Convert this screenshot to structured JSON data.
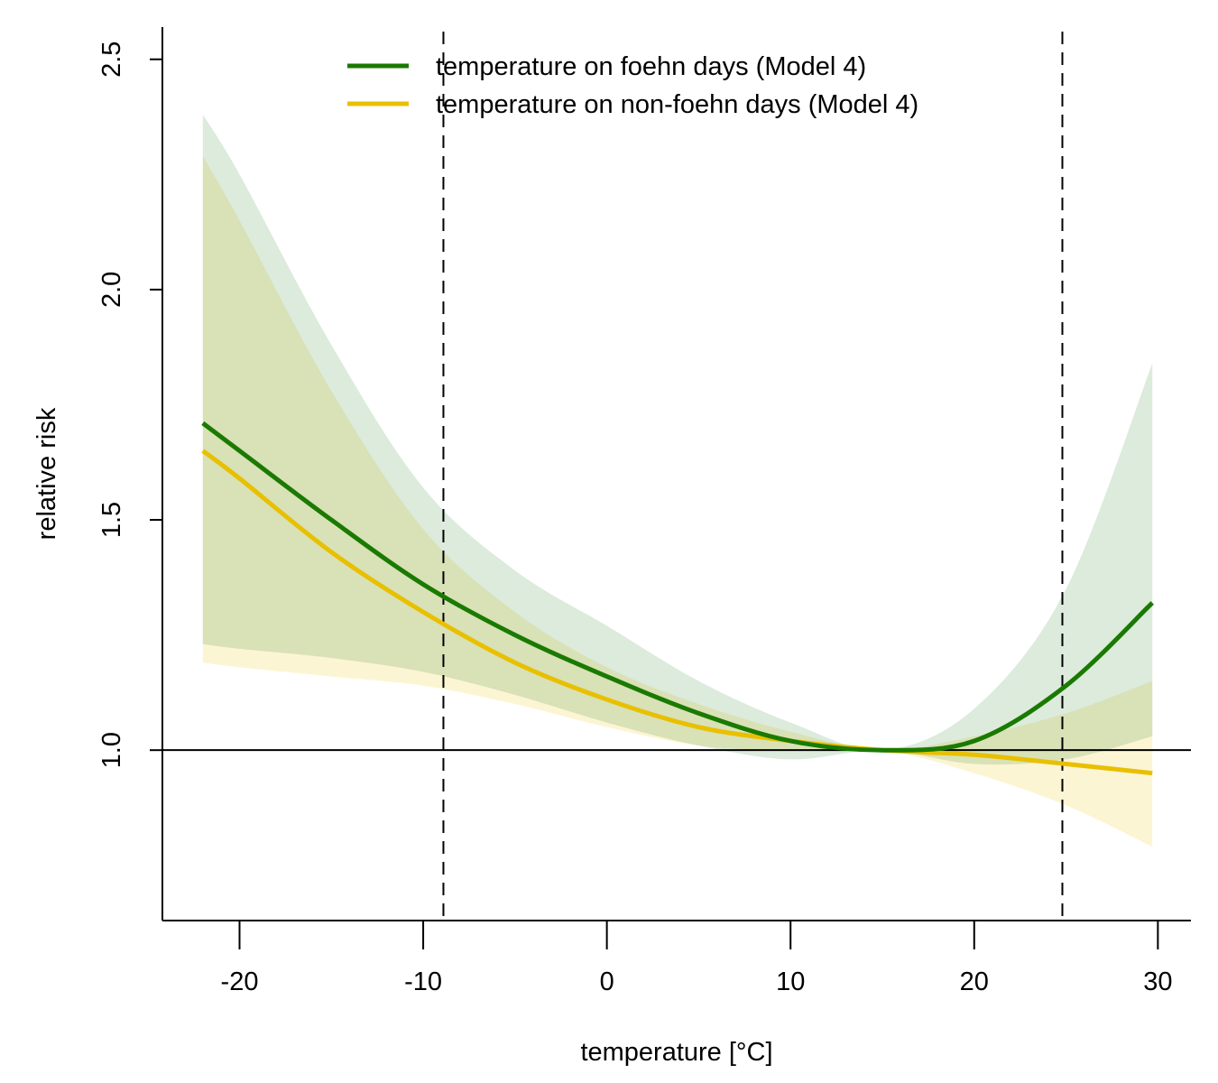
{
  "chart_data": {
    "type": "line",
    "title": "",
    "xlabel": "temperature [°C]",
    "ylabel": "relative risk",
    "xlim": [
      -24.2,
      31.8
    ],
    "ylim": [
      0.63,
      2.57
    ],
    "xticks": [
      -20,
      -10,
      0,
      10,
      20,
      30
    ],
    "xtick_labels": [
      "-20",
      "-10",
      "0",
      "10",
      "20",
      "30"
    ],
    "yticks": [
      1.0,
      1.5,
      2.0,
      2.5
    ],
    "ytick_labels": [
      "1.0",
      "1.5",
      "2.0",
      "2.5"
    ],
    "grid": false,
    "legend_position": "top-center",
    "reference_line_y": 1.0,
    "vertical_dashed_lines_x": [
      -8.9,
      24.8
    ],
    "x": [
      -22,
      -20,
      -15,
      -10,
      -5,
      0,
      5,
      10,
      15,
      20,
      25,
      29.7
    ],
    "series": [
      {
        "name": "temperature on foehn days (Model 4)",
        "color": "#1a7a00",
        "band_color": "#dcebdc",
        "values": [
          1.71,
          1.65,
          1.5,
          1.36,
          1.25,
          1.16,
          1.08,
          1.02,
          1.0,
          1.02,
          1.14,
          1.32
        ],
        "lower": [
          1.23,
          1.22,
          1.2,
          1.17,
          1.12,
          1.06,
          1.01,
          0.98,
          1.0,
          0.97,
          0.98,
          1.03
        ],
        "upper": [
          2.38,
          2.25,
          1.88,
          1.57,
          1.39,
          1.27,
          1.15,
          1.06,
          1.0,
          1.09,
          1.35,
          1.84
        ]
      },
      {
        "name": "temperature on non-foehn days (Model 4)",
        "color": "#e8c000",
        "band_color": "#fcf5d4",
        "values": [
          1.65,
          1.59,
          1.43,
          1.3,
          1.19,
          1.11,
          1.05,
          1.02,
          1.0,
          0.99,
          0.97,
          0.95
        ],
        "lower": [
          1.19,
          1.18,
          1.16,
          1.14,
          1.1,
          1.05,
          1.01,
          1.0,
          1.0,
          0.95,
          0.88,
          0.79
        ],
        "upper": [
          2.29,
          2.15,
          1.78,
          1.48,
          1.3,
          1.18,
          1.1,
          1.04,
          1.0,
          1.03,
          1.08,
          1.15
        ]
      }
    ]
  }
}
